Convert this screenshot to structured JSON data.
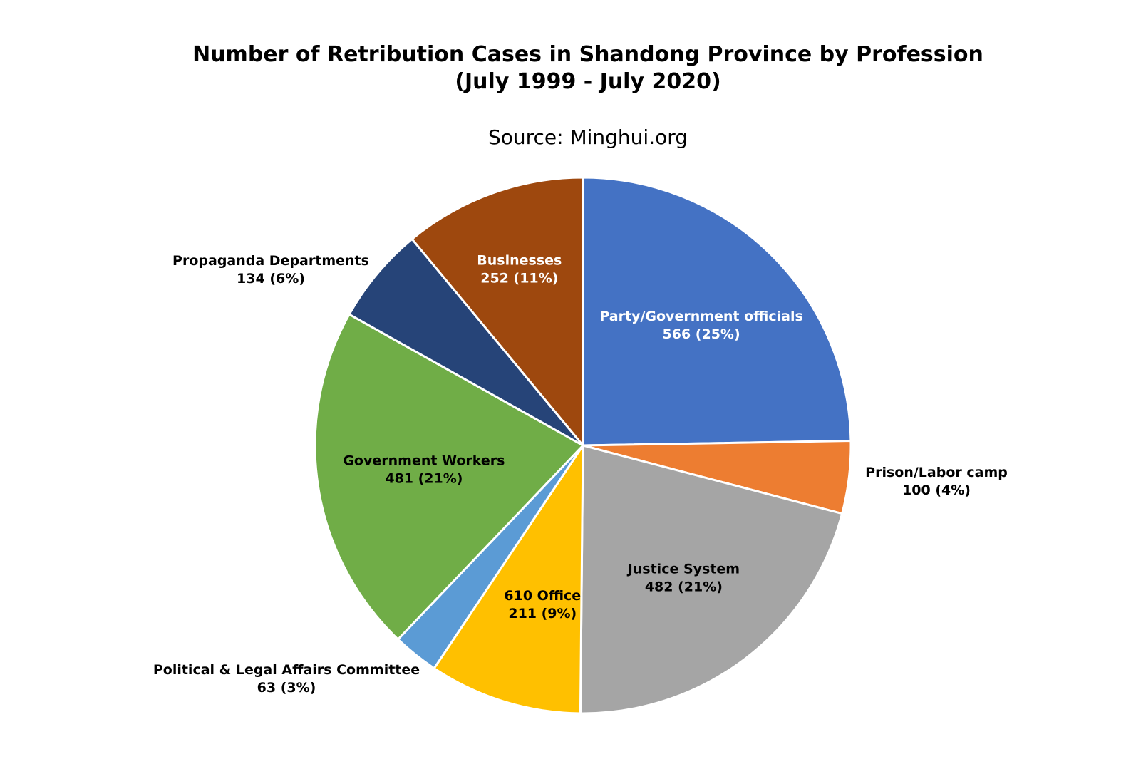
{
  "chart_data": {
    "type": "pie",
    "title": [
      "Number of Retribution Cases in Shandong Province by Profession",
      "(July 1999 - July 2020)"
    ],
    "subtitle": "Source: Minghui.org",
    "start_angle_deg": 0,
    "direction": "clockwise",
    "slices": [
      {
        "name": "Party/Government officials",
        "value": 566,
        "label_value": "566 (25%)",
        "color": "#4472C4",
        "label_color": "#ffffff",
        "label_position": "inside"
      },
      {
        "name": "Prison/Labor camp",
        "value": 100,
        "label_value": "100 (4%)",
        "color": "#ED7D31",
        "label_color": "#000000",
        "label_position": "outside-right"
      },
      {
        "name": "Justice System",
        "value": 482,
        "label_value": "482 (21%)",
        "color": "#A5A5A5",
        "label_color": "#000000",
        "label_position": "inside"
      },
      {
        "name": "610 Office",
        "value": 211,
        "label_value": "211 (9%)",
        "color": "#FFC000",
        "label_color": "#000000",
        "label_position": "inside"
      },
      {
        "name": "Political & Legal Affairs Committee",
        "value": 63,
        "label_value": "63 (3%)",
        "color": "#5B9BD5",
        "label_color": "#000000",
        "label_position": "outside-left"
      },
      {
        "name": "Government Workers",
        "value": 481,
        "label_value": "481 (21%)",
        "color": "#70AD47",
        "label_color": "#000000",
        "label_position": "inside"
      },
      {
        "name": "Propaganda Departments",
        "value": 134,
        "label_value": "134 (6%)",
        "color": "#264478",
        "label_color": "#000000",
        "label_position": "outside-left"
      },
      {
        "name": "Businesses",
        "value": 252,
        "label_value": "252 (11%)",
        "color": "#9E480E",
        "label_color": "#ffffff",
        "label_position": "inside"
      }
    ]
  }
}
